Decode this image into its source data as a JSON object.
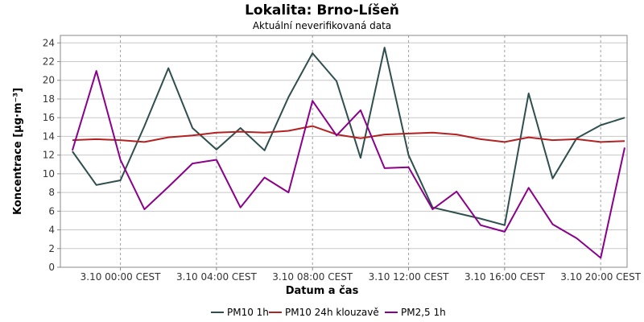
{
  "chart_data": {
    "type": "line",
    "title": "Lokalita: Brno-Líšeň",
    "subtitle": "Aktuální neverifikovaná data",
    "xlabel": "Datum a čas",
    "ylabel": "Koncentrace [µg·m⁻³]",
    "ylim": [
      0,
      24.8
    ],
    "yticks": [
      0,
      2,
      4,
      6,
      8,
      10,
      12,
      14,
      16,
      18,
      20,
      22,
      24
    ],
    "xlim": [
      -2.5,
      21.1
    ],
    "xticks": [
      {
        "value": 0,
        "label": "3.10 00:00 CEST"
      },
      {
        "value": 4,
        "label": "3.10 04:00 CEST"
      },
      {
        "value": 8,
        "label": "3.10 08:00 CEST"
      },
      {
        "value": 12,
        "label": "3.10 12:00 CEST"
      },
      {
        "value": 16,
        "label": "3.10 16:00 CEST"
      },
      {
        "value": 20,
        "label": "3.10 20:00 CEST"
      }
    ],
    "grid": true,
    "legend_position": "bottom",
    "x": [
      -2,
      -1,
      0,
      1,
      2,
      3,
      4,
      5,
      6,
      7,
      8,
      9,
      10,
      11,
      12,
      13,
      14,
      15,
      16,
      17,
      18,
      19,
      20,
      21
    ],
    "series": [
      {
        "name": "PM10 1h",
        "color": "#2f4f4f",
        "values": [
          12.4,
          8.8,
          9.3,
          15.1,
          21.3,
          14.9,
          12.6,
          14.9,
          12.5,
          18.2,
          22.9,
          19.9,
          11.7,
          23.5,
          12.0,
          6.4,
          5.8,
          5.2,
          4.5,
          18.6,
          9.5,
          13.8,
          15.2,
          16.0
        ]
      },
      {
        "name": "PM10 24h klouzavě",
        "color": "#b22222",
        "values": [
          13.6,
          13.7,
          13.6,
          13.4,
          13.9,
          14.1,
          14.4,
          14.5,
          14.4,
          14.6,
          15.1,
          14.2,
          13.8,
          14.2,
          14.3,
          14.4,
          14.2,
          13.7,
          13.4,
          13.9,
          13.6,
          13.7,
          13.4,
          13.5
        ]
      },
      {
        "name": "PM2,5 1h",
        "color": "#8b008b",
        "values": [
          12.5,
          21.0,
          11.5,
          6.2,
          8.6,
          11.1,
          11.5,
          6.4,
          9.6,
          8.0,
          17.8,
          14.1,
          16.8,
          10.6,
          10.7,
          6.2,
          8.1,
          4.5,
          3.8,
          8.5,
          4.6,
          3.1,
          1.0,
          12.8
        ]
      }
    ]
  }
}
